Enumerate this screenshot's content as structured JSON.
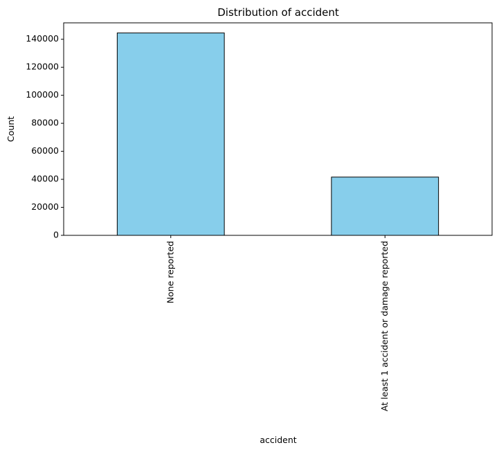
{
  "chart_data": {
    "type": "bar",
    "title": "Distribution of accident",
    "xlabel": "accident",
    "ylabel": "Count",
    "categories": [
      "None reported",
      "At least 1 accident or damage reported"
    ],
    "values": [
      144500,
      41600
    ],
    "ylim": [
      0,
      151725
    ],
    "yticks": [
      0,
      20000,
      40000,
      60000,
      80000,
      100000,
      120000,
      140000
    ],
    "ytick_labels": [
      "0",
      "20000",
      "40000",
      "60000",
      "80000",
      "100000",
      "120000",
      "140000"
    ],
    "bar_color": "#87CEEB",
    "bar_edge_color": "#000000",
    "grid": false,
    "legend": false
  }
}
